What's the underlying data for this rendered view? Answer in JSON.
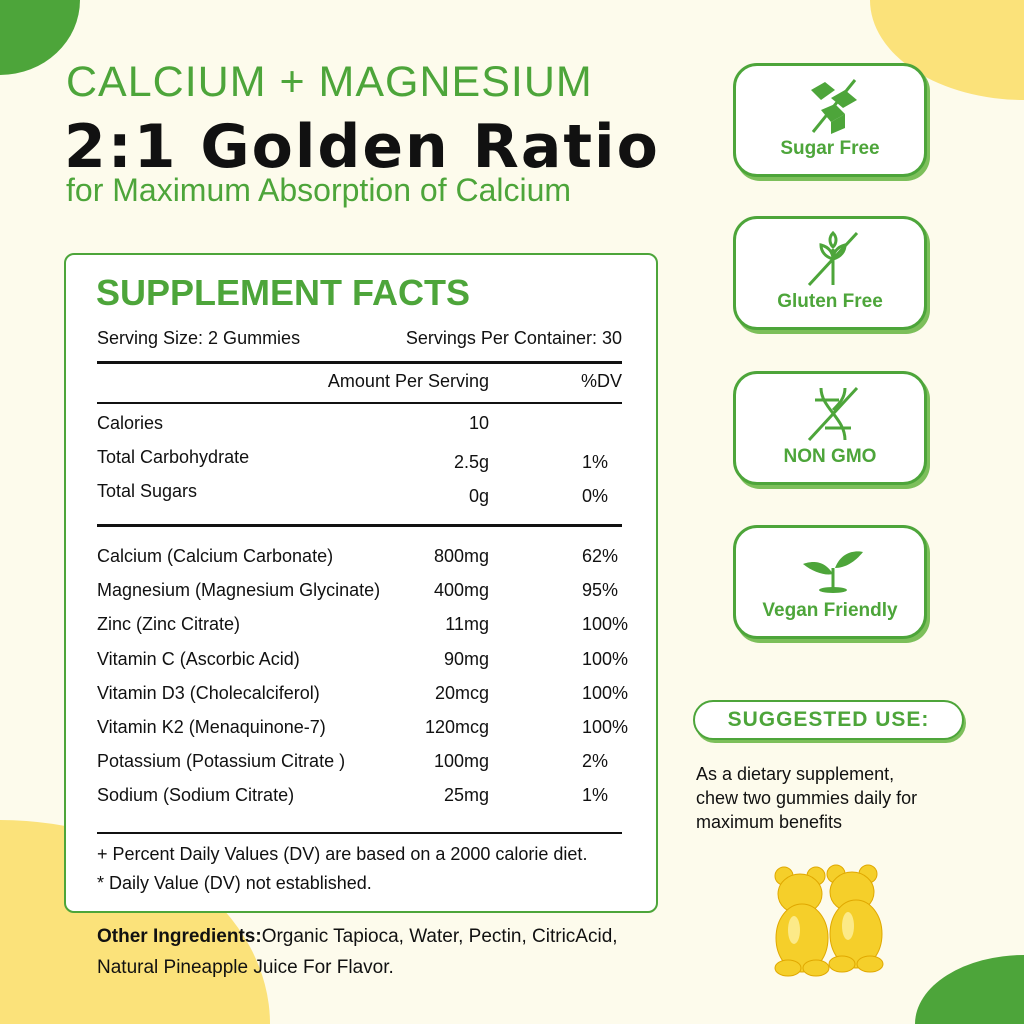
{
  "colors": {
    "accent": "#4da53a",
    "yellow": "#f9dc5c",
    "background": "#fdfbec"
  },
  "header": {
    "line1": "CALCIUM + MAGNESIUM",
    "line2": "2:1 Golden Ratio",
    "line3": "for Maximum Absorption of Calcium"
  },
  "facts": {
    "title": "SUPPLEMENT FACTS",
    "serving_size": "Serving Size: 2 Gummies",
    "servings_per_container": "Servings Per Container: 30",
    "col_amount": "Amount Per Serving",
    "col_dv": "%DV",
    "basic": [
      {
        "name": "Calories",
        "amount": "10",
        "dv": ""
      },
      {
        "name": "Total Carbohydrate",
        "amount": "2.5g",
        "dv": "1%"
      },
      {
        "name": "Total Sugars",
        "amount": "0g",
        "dv": "0%"
      }
    ],
    "nutrients": [
      {
        "name": "Calcium (Calcium Carbonate)",
        "amount": "800mg",
        "dv": "62%"
      },
      {
        "name": "Magnesium (Magnesium Glycinate)",
        "amount": "400mg",
        "dv": "95%"
      },
      {
        "name": "Zinc (Zinc Citrate)",
        "amount": "11mg",
        "dv": "100%"
      },
      {
        "name": "Vitamin C (Ascorbic Acid)",
        "amount": "90mg",
        "dv": "100%"
      },
      {
        "name": "Vitamin D3 (Cholecalciferol)",
        "amount": "20mcg",
        "dv": "100%"
      },
      {
        "name": "Vitamin K2 (Menaquinone-7)",
        "amount": "120mcg",
        "dv": "100%"
      },
      {
        "name": "Potassium (Potassium Citrate )",
        "amount": "100mg",
        "dv": "2%"
      },
      {
        "name": "Sodium (Sodium Citrate)",
        "amount": "25mg",
        "dv": "1%"
      }
    ],
    "footnote1": "+ Percent Daily Values (DV) are based on a  2000 calorie diet.",
    "footnote2": "* Daily Value (DV) not established."
  },
  "ingredients": {
    "label": "Other Ingredients:",
    "text1": "Organic Tapioca, Water, Pectin, CitricAcid,",
    "text2": "Natural Pineapple Juice For Flavor."
  },
  "badges": [
    {
      "label": "Sugar Free",
      "icon": "sugar-cubes-crossed-icon"
    },
    {
      "label": "Gluten Free",
      "icon": "wheat-crossed-icon"
    },
    {
      "label": "NON GMO",
      "icon": "dna-crossed-icon"
    },
    {
      "label": "Vegan Friendly",
      "icon": "sprout-icon"
    }
  ],
  "suggested_use": {
    "title": "SUGGESTED USE:",
    "line1": "As a dietary supplement,",
    "line2": "chew two gummies daily for",
    "line3": "maximum benefits"
  }
}
